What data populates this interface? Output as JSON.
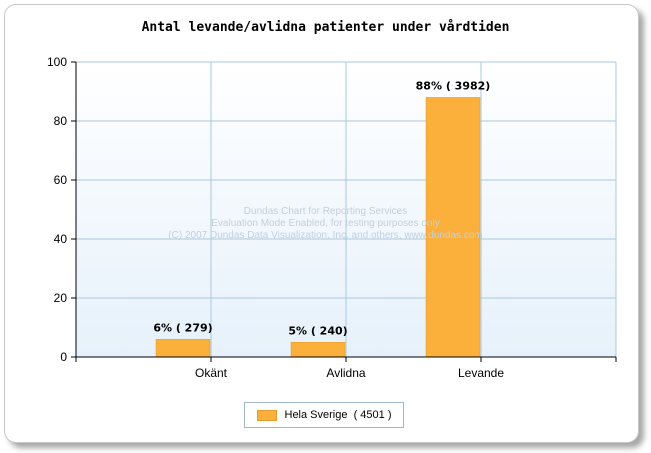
{
  "chart_data": {
    "type": "bar",
    "title": "Antal levande/avlidna patienter under vårdtiden",
    "categories": [
      "Okänt",
      "Avlidna",
      "Levande"
    ],
    "series": [
      {
        "name": "Hela Sverige  ( 4501 )",
        "values": [
          6,
          5,
          88
        ],
        "labels": [
          "6% ( 279)",
          "5% ( 240)",
          "88% ( 3982)"
        ]
      }
    ],
    "ylim": [
      0,
      100
    ],
    "yticks": [
      0,
      20,
      40,
      60,
      80,
      100
    ],
    "grid": true,
    "legend_position": "bottom-center",
    "colors": {
      "bar": "#fbb03b",
      "grid": "#a8c8e0",
      "axis": "#000000"
    },
    "watermark": [
      "Dundas Chart for Reporting Services",
      "Evaluation Mode Enabled, for testing purposes only",
      "(C) 2007 Dundas Data Visualization, Inc. and others, www.dundas.com"
    ]
  }
}
